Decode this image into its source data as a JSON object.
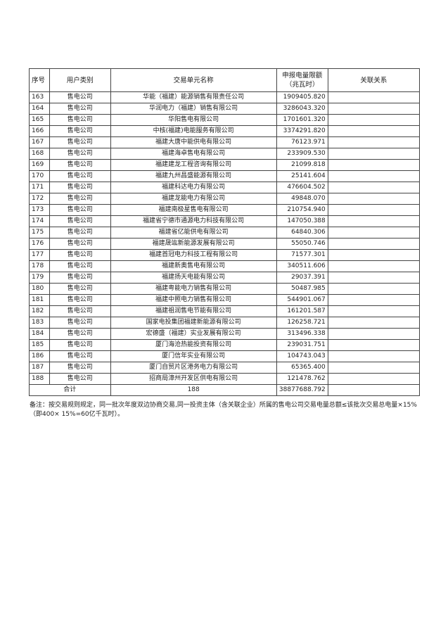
{
  "headers": {
    "index": "序号",
    "user_type": "用户类别",
    "unit_name": "交易单元名称",
    "limit_line1": "申报电量限额",
    "limit_line2": "（兆瓦时）",
    "relation": "关联关系"
  },
  "rows": [
    {
      "index": "163",
      "type": "售电公司",
      "name": "华能（福建）能源销售有限责任公司",
      "limit": "1909405.820",
      "relation": ""
    },
    {
      "index": "164",
      "type": "售电公司",
      "name": "华润电力（福建）销售有限公司",
      "limit": "3286043.320",
      "relation": ""
    },
    {
      "index": "165",
      "type": "售电公司",
      "name": "华阳售电有限公司",
      "limit": "1701601.320",
      "relation": ""
    },
    {
      "index": "166",
      "type": "售电公司",
      "name": "中核(福建)电能服务有限公司",
      "limit": "3374291.820",
      "relation": ""
    },
    {
      "index": "167",
      "type": "售电公司",
      "name": "福建大唐中能供电有限公司",
      "limit": "76123.971",
      "relation": ""
    },
    {
      "index": "168",
      "type": "售电公司",
      "name": "福建海卓售电有限公司",
      "limit": "233909.530",
      "relation": ""
    },
    {
      "index": "169",
      "type": "售电公司",
      "name": "福建建龙工程咨询有限公司",
      "limit": "21099.818",
      "relation": ""
    },
    {
      "index": "170",
      "type": "售电公司",
      "name": "福建九州昌盛能源有限公司",
      "limit": "25141.604",
      "relation": ""
    },
    {
      "index": "171",
      "type": "售电公司",
      "name": "福建科达电力有限公司",
      "limit": "476604.502",
      "relation": ""
    },
    {
      "index": "172",
      "type": "售电公司",
      "name": "福建龙能电力有限公司",
      "limit": "49848.070",
      "relation": ""
    },
    {
      "index": "173",
      "type": "售电公司",
      "name": "福建南极星售电有限公司",
      "limit": "210754.940",
      "relation": ""
    },
    {
      "index": "174",
      "type": "售电公司",
      "name": "福建省宁德市通源电力科技有限公司",
      "limit": "147050.388",
      "relation": ""
    },
    {
      "index": "175",
      "type": "售电公司",
      "name": "福建省亿能供电有限公司",
      "limit": "64840.306",
      "relation": ""
    },
    {
      "index": "176",
      "type": "售电公司",
      "name": "福建晟竑新能源发展有限公司",
      "limit": "55050.746",
      "relation": ""
    },
    {
      "index": "177",
      "type": "售电公司",
      "name": "福建首冠电力科技工程有限公司",
      "limit": "71577.301",
      "relation": ""
    },
    {
      "index": "178",
      "type": "售电公司",
      "name": "福建新奥售电有限公司",
      "limit": "340511.606",
      "relation": ""
    },
    {
      "index": "179",
      "type": "售电公司",
      "name": "福建扬天电能有限公司",
      "limit": "29037.391",
      "relation": ""
    },
    {
      "index": "180",
      "type": "售电公司",
      "name": "福建粤能电力销售有限公司",
      "limit": "50487.985",
      "relation": ""
    },
    {
      "index": "181",
      "type": "售电公司",
      "name": "福建中照电力销售有限公司",
      "limit": "544901.067",
      "relation": ""
    },
    {
      "index": "182",
      "type": "售电公司",
      "name": "福建祖润售电节能有限公司",
      "limit": "161201.587",
      "relation": ""
    },
    {
      "index": "183",
      "type": "售电公司",
      "name": "国家电投集团福建新能源有限公司",
      "limit": "126258.721",
      "relation": ""
    },
    {
      "index": "184",
      "type": "售电公司",
      "name": "宏德盛（福建）实业发展有限公司",
      "limit": "313496.338",
      "relation": ""
    },
    {
      "index": "185",
      "type": "售电公司",
      "name": "厦门海沧热能投资有限公司",
      "limit": "239031.751",
      "relation": ""
    },
    {
      "index": "186",
      "type": "售电公司",
      "name": "厦门信年实业有限公司",
      "limit": "104743.043",
      "relation": ""
    },
    {
      "index": "187",
      "type": "售电公司",
      "name": "厦门自贸片区港务电力有限公司",
      "limit": "65365.400",
      "relation": ""
    },
    {
      "index": "188",
      "type": "售电公司",
      "name": "招商局漳州开发区供电有限公司",
      "limit": "121478.762",
      "relation": ""
    }
  ],
  "total": {
    "label": "合计",
    "count": "188",
    "limit": "38877688.792"
  },
  "note": "备注：按交易规则规定，同一批次年度双边协商交易,同一投资主体（含关联企业）所属的售电公司交易电量总额≤该批次交易总电量×15%（即400× 15%=60亿千瓦时）。"
}
